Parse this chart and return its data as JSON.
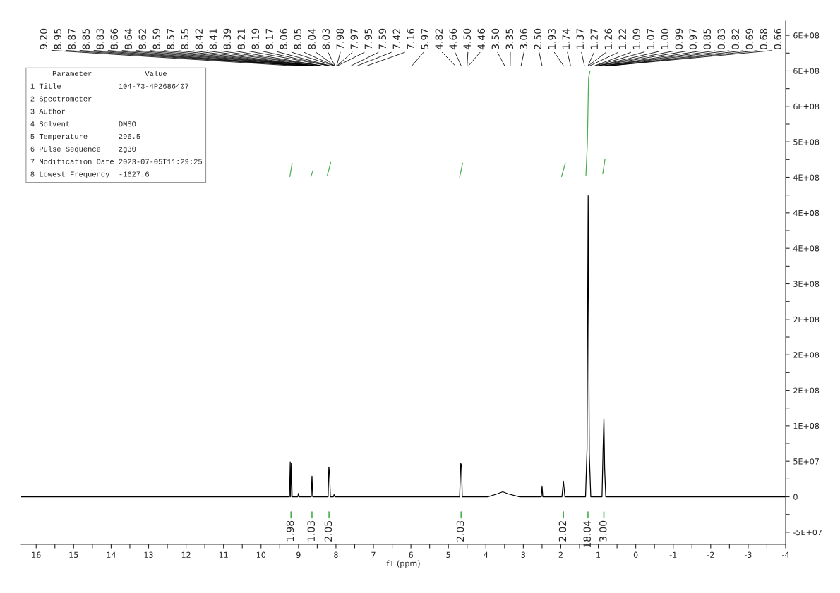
{
  "chart_data": {
    "type": "line",
    "xlabel": "f1 (ppm)",
    "xlim": [
      16.4,
      -4.0
    ],
    "xticks": [
      16,
      {
        "value": 15.5,
        "label": null
      },
      15,
      {
        "value": 14.5,
        "label": null
      },
      14,
      {
        "value": 13.5,
        "label": null
      },
      13,
      {
        "value": 12.5,
        "label": null
      },
      12,
      {
        "value": 11.5,
        "label": null
      },
      11,
      {
        "value": 10.5,
        "label": null
      },
      10,
      {
        "value": 9.5,
        "label": null
      },
      9,
      {
        "value": 8.5,
        "label": null
      },
      8,
      {
        "value": 7.5,
        "label": null
      },
      7,
      {
        "value": 6.5,
        "label": null
      },
      6,
      {
        "value": 5.5,
        "label": null
      },
      5,
      {
        "value": 4.5,
        "label": null
      },
      4,
      {
        "value": 3.5,
        "label": null
      },
      3,
      {
        "value": 2.5,
        "label": null
      },
      2,
      {
        "value": 1.5,
        "label": null
      },
      1,
      {
        "value": 0.5,
        "label": null
      },
      0,
      {
        "value": -0.5,
        "label": null
      },
      -1,
      {
        "value": -1.5,
        "label": null
      },
      -2,
      {
        "value": -2.5,
        "label": null
      },
      -3,
      {
        "value": -3.5,
        "label": null
      },
      -4
    ],
    "ylim": [
      -67000000,
      670000000
    ],
    "yticks": [
      {
        "value": -50000000,
        "label": "-5E+07"
      },
      {
        "value": -25000000,
        "label": null
      },
      {
        "value": 0,
        "label": "0"
      },
      {
        "value": 25000000,
        "label": null
      },
      {
        "value": 50000000,
        "label": "5E+07"
      },
      {
        "value": 75000000,
        "label": null
      },
      {
        "value": 100000000,
        "label": "1E+08"
      },
      {
        "value": 125000000,
        "label": null
      },
      {
        "value": 150000000,
        "label": "2E+08"
      },
      {
        "value": 175000000,
        "label": null
      },
      {
        "value": 200000000,
        "label": "2E+08"
      },
      {
        "value": 225000000,
        "label": null
      },
      {
        "value": 250000000,
        "label": "2E+08"
      },
      {
        "value": 275000000,
        "label": null
      },
      {
        "value": 300000000,
        "label": "3E+08"
      },
      {
        "value": 325000000,
        "label": null
      },
      {
        "value": 350000000,
        "label": "4E+08"
      },
      {
        "value": 375000000,
        "label": null
      },
      {
        "value": 400000000,
        "label": "4E+08"
      },
      {
        "value": 425000000,
        "label": null
      },
      {
        "value": 450000000,
        "label": "4E+08"
      },
      {
        "value": 475000000,
        "label": null
      },
      {
        "value": 500000000,
        "label": "5E+08"
      },
      {
        "value": 525000000,
        "label": null
      },
      {
        "value": 550000000,
        "label": "6E+08"
      },
      {
        "value": 575000000,
        "label": null
      },
      {
        "value": 600000000,
        "label": "6E+08"
      },
      {
        "value": 625000000,
        "label": null
      },
      {
        "value": 650000000,
        "label": "6E+08"
      }
    ],
    "grid": false,
    "series": [
      {
        "color": "#000000",
        "x": [
          16.4,
          9.24,
          9.22,
          9.21,
          9.19,
          9.17,
          9.02,
          9.0,
          8.98,
          8.66,
          8.64,
          8.62,
          8.21,
          8.19,
          8.17,
          8.15,
          8.07,
          8.05,
          8.03,
          4.7,
          4.67,
          4.65,
          4.63,
          3.95,
          3.7,
          3.55,
          3.4,
          3.1,
          2.52,
          2.5,
          2.48,
          1.97,
          1.93,
          1.89,
          1.34,
          1.3,
          1.27,
          1.24,
          1.2,
          0.9,
          0.87,
          0.85,
          0.83,
          0.8,
          -4.0
        ],
        "values": [
          0,
          0,
          49000000,
          0,
          47000000,
          0,
          0,
          5000000,
          0,
          0,
          29000000,
          0,
          0,
          42000000,
          33000000,
          0,
          0,
          3000000,
          0,
          0,
          47000000,
          44000000,
          0,
          0,
          4000000,
          7000000,
          4000000,
          0,
          0,
          15000000,
          0,
          0,
          22000000,
          0,
          0,
          68000000,
          424000000,
          60000000,
          0,
          0,
          71000000,
          110000000,
          40000000,
          0,
          0
        ]
      },
      {
        "color": "#4caf50",
        "x": [
          9.23,
          9.17,
          null,
          8.67,
          8.61,
          null,
          8.23,
          8.14,
          null,
          4.7,
          4.62,
          null,
          1.98,
          1.88,
          null,
          1.33,
          1.29,
          1.26,
          1.22,
          null,
          0.88,
          0.82
        ],
        "values": [
          451000000,
          470000000,
          null,
          451000000,
          460000000,
          null,
          453000000,
          471000000,
          null,
          450000000,
          470000000,
          null,
          451000000,
          470000000,
          null,
          453000000,
          500000000,
          590000000,
          600000000,
          null,
          455000000,
          476000000
        ]
      }
    ],
    "annotations": [
      "     Parameter            Value",
      "1 Title             104-73-4P2686407",
      "2 Spectrometer",
      "3 Author",
      "4 Solvent           DMSO",
      "5 Temperature       296.5",
      "6 Pulse Sequence    zg30",
      "7 Modification Date 2023-07-05T11:29:25",
      "8 Lowest Frequency  -1627.6",
      "9.20",
      "8.95",
      "8.87",
      "8.85",
      "8.83",
      "8.66",
      "8.64",
      "8.62",
      "8.59",
      "8.57",
      "8.55",
      "8.42",
      "8.41",
      "8.39",
      "8.21",
      "8.19",
      "8.17",
      "8.06",
      "8.05",
      "8.04",
      "8.03",
      "7.98",
      "7.97",
      "7.95",
      "7.59",
      "7.42",
      "7.16",
      "5.97",
      "4.82",
      "4.66",
      "4.50",
      "4.46",
      "3.50",
      "3.35",
      "3.06",
      "2.50",
      "1.93",
      "1.74",
      "1.37",
      "1.27",
      "1.26",
      "1.22",
      "1.09",
      "1.07",
      "1.00",
      "0.99",
      "0.97",
      "0.85",
      "0.83",
      "0.82",
      "0.69",
      "0.68",
      "0.66",
      "1.98",
      "1.03",
      "2.05",
      "2.03",
      "2.02",
      "18.04",
      "3.00"
    ]
  }
}
